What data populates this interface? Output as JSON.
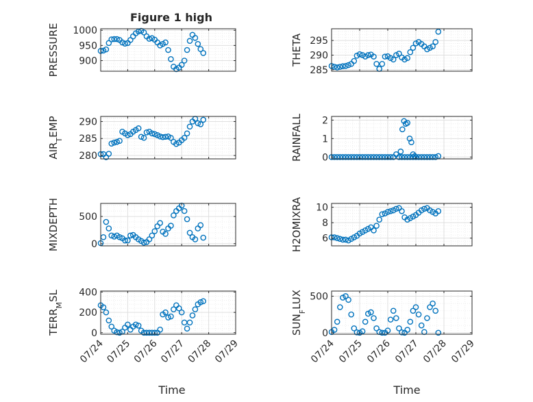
{
  "figure_title": "Figure 1 high",
  "xlabel": "Time",
  "x_ticks": [
    "07/24",
    "07/25",
    "07/26",
    "07/27",
    "07/28",
    "07/29"
  ],
  "colors": {
    "series": "#0072bd",
    "axis": "#262626",
    "grid": "#dfdfdf",
    "background": "#ffffff"
  },
  "chart_data": [
    {
      "type": "scatter",
      "ylabel": "PRESSURE",
      "ylim": [
        865,
        1005
      ],
      "yticks": [
        900,
        950,
        1000
      ],
      "grid": true,
      "t": [
        0,
        0.1,
        0.2,
        0.3,
        0.4,
        0.5,
        0.6,
        0.7,
        0.8,
        0.9,
        1.0,
        1.1,
        1.2,
        1.3,
        1.4,
        1.5,
        1.6,
        1.7,
        1.8,
        1.9,
        2.0,
        2.1,
        2.2,
        2.3,
        2.4,
        2.5,
        2.6,
        2.7,
        2.8,
        2.9,
        3.0,
        3.1,
        3.2,
        3.3,
        3.4,
        3.5,
        3.6,
        3.7,
        3.8
      ],
      "y": [
        932,
        933,
        937,
        958,
        970,
        971,
        971,
        968,
        960,
        956,
        958,
        968,
        980,
        990,
        996,
        998,
        993,
        980,
        972,
        974,
        969,
        960,
        950,
        955,
        960,
        935,
        905,
        880,
        872,
        877,
        886,
        900,
        935,
        965,
        985,
        975,
        955,
        938,
        925
      ]
    },
    {
      "type": "scatter",
      "ylabel": "THETA",
      "ylim": [
        284.5,
        299
      ],
      "yticks": [
        285,
        290,
        295
      ],
      "grid": true,
      "t": [
        0,
        0.1,
        0.2,
        0.3,
        0.4,
        0.5,
        0.6,
        0.7,
        0.8,
        0.9,
        1.0,
        1.1,
        1.2,
        1.3,
        1.4,
        1.5,
        1.6,
        1.7,
        1.8,
        1.9,
        2.0,
        2.1,
        2.2,
        2.3,
        2.4,
        2.5,
        2.6,
        2.7,
        2.8,
        2.9,
        3.0,
        3.1,
        3.2,
        3.3,
        3.4,
        3.5,
        3.6,
        3.7,
        3.8
      ],
      "y": [
        286.3,
        286.0,
        285.8,
        286.0,
        286.2,
        286.3,
        286.6,
        287.0,
        288.0,
        289.8,
        290.3,
        290.0,
        289.5,
        290.0,
        290.2,
        289.5,
        287.0,
        285.3,
        287.0,
        289.5,
        289.6,
        289.0,
        288.5,
        290.0,
        290.5,
        289.2,
        288.5,
        289.0,
        291.0,
        292.5,
        294.0,
        294.5,
        293.8,
        293.0,
        292.0,
        292.5,
        293.0,
        294.5,
        298.0
      ]
    },
    {
      "type": "scatter",
      "ylabel": "AIR_TEMP",
      "ylim": [
        279,
        291.5
      ],
      "yticks": [
        280,
        285,
        290
      ],
      "grid": true,
      "t": [
        0,
        0.1,
        0.2,
        0.3,
        0.4,
        0.5,
        0.6,
        0.7,
        0.8,
        0.9,
        1.0,
        1.1,
        1.2,
        1.3,
        1.4,
        1.5,
        1.6,
        1.7,
        1.8,
        1.9,
        2.0,
        2.1,
        2.2,
        2.3,
        2.4,
        2.5,
        2.6,
        2.7,
        2.8,
        2.9,
        3.0,
        3.1,
        3.2,
        3.3,
        3.4,
        3.5,
        3.6,
        3.7,
        3.8
      ],
      "y": [
        280.4,
        280.4,
        279.5,
        280.5,
        283.5,
        283.8,
        284.0,
        284.3,
        287.0,
        286.5,
        286.0,
        286.3,
        287.0,
        287.5,
        288.0,
        285.5,
        285.2,
        286.8,
        287.0,
        286.5,
        286.3,
        286.0,
        285.6,
        285.4,
        285.5,
        285.6,
        285.2,
        284.0,
        283.4,
        283.8,
        284.5,
        285.2,
        286.5,
        288.5,
        290.0,
        290.8,
        289.5,
        289.2,
        290.5
      ]
    },
    {
      "type": "scatter",
      "ylabel": "RAINFALL",
      "ylim": [
        -0.1,
        2.2
      ],
      "yticks": [
        0,
        1,
        2
      ],
      "grid": true,
      "t": [
        0,
        0.1,
        0.2,
        0.3,
        0.4,
        0.5,
        0.6,
        0.7,
        0.8,
        0.9,
        1.0,
        1.1,
        1.2,
        1.3,
        1.4,
        1.5,
        1.6,
        1.7,
        1.8,
        1.9,
        2.0,
        2.1,
        2.2,
        2.3,
        2.4,
        2.5,
        2.6,
        2.7,
        2.8,
        2.9,
        3.0,
        3.1,
        3.2,
        3.3,
        3.4,
        3.5,
        3.6,
        3.7,
        3.8,
        2.46,
        2.52,
        2.58,
        2.64,
        2.7,
        2.78,
        2.84,
        2.9,
        2.96
      ],
      "y": [
        0,
        0,
        0,
        0,
        0,
        0,
        0,
        0,
        0,
        0,
        0,
        0,
        0,
        0,
        0,
        0,
        0,
        0,
        0,
        0,
        0,
        0,
        0,
        0.15,
        0,
        0,
        0,
        0,
        0,
        0,
        0,
        0,
        0,
        0,
        0,
        0,
        0,
        0,
        0.05,
        0.3,
        1.5,
        1.95,
        1.8,
        1.85,
        1.0,
        0.8,
        0.15,
        0.05
      ]
    },
    {
      "type": "scatter",
      "ylabel": "MIXDEPTH",
      "ylim": [
        -40,
        740
      ],
      "yticks": [
        0,
        500
      ],
      "grid": true,
      "t": [
        0,
        0.1,
        0.2,
        0.3,
        0.4,
        0.5,
        0.6,
        0.7,
        0.8,
        0.9,
        1.0,
        1.1,
        1.2,
        1.3,
        1.4,
        1.5,
        1.6,
        1.7,
        1.8,
        1.9,
        2.0,
        2.1,
        2.2,
        2.3,
        2.4,
        2.5,
        2.6,
        2.7,
        2.8,
        2.9,
        3.0,
        3.1,
        3.2,
        3.3,
        3.4,
        3.5,
        3.6,
        3.7,
        3.8
      ],
      "y": [
        10,
        120,
        400,
        280,
        150,
        130,
        150,
        120,
        100,
        60,
        60,
        150,
        160,
        120,
        80,
        50,
        20,
        30,
        80,
        150,
        230,
        320,
        380,
        220,
        180,
        280,
        330,
        520,
        600,
        650,
        700,
        600,
        450,
        200,
        120,
        80,
        280,
        340,
        110
      ]
    },
    {
      "type": "scatter",
      "ylabel": "H2OMIXRA",
      "ylim": [
        5,
        10.5
      ],
      "yticks": [
        6,
        8,
        10
      ],
      "grid": true,
      "t": [
        0,
        0.1,
        0.2,
        0.3,
        0.4,
        0.5,
        0.6,
        0.7,
        0.8,
        0.9,
        1.0,
        1.1,
        1.2,
        1.3,
        1.4,
        1.5,
        1.6,
        1.7,
        1.8,
        1.9,
        2.0,
        2.1,
        2.2,
        2.3,
        2.4,
        2.5,
        2.6,
        2.7,
        2.8,
        2.9,
        3.0,
        3.1,
        3.2,
        3.3,
        3.4,
        3.5,
        3.6,
        3.7,
        3.8
      ],
      "y": [
        6.1,
        6.1,
        6.0,
        5.9,
        5.8,
        5.8,
        5.7,
        5.9,
        6.1,
        6.3,
        6.6,
        6.8,
        7.0,
        7.2,
        7.4,
        7.0,
        7.6,
        8.4,
        9.1,
        9.2,
        9.4,
        9.5,
        9.6,
        9.8,
        9.9,
        9.5,
        8.7,
        8.4,
        8.6,
        8.8,
        9.0,
        9.3,
        9.6,
        9.8,
        9.9,
        9.6,
        9.4,
        9.2,
        9.5
      ]
    },
    {
      "type": "scatter",
      "ylabel": "TERR_MSL",
      "ylim": [
        -15,
        410
      ],
      "yticks": [
        0,
        200,
        400
      ],
      "grid": true,
      "t": [
        0,
        0.1,
        0.2,
        0.3,
        0.4,
        0.5,
        0.6,
        0.7,
        0.8,
        0.9,
        1.0,
        1.1,
        1.2,
        1.3,
        1.4,
        1.5,
        1.6,
        1.7,
        1.8,
        1.9,
        2.0,
        2.1,
        2.2,
        2.3,
        2.4,
        2.5,
        2.6,
        2.7,
        2.8,
        2.9,
        3.0,
        3.1,
        3.2,
        3.3,
        3.4,
        3.5,
        3.6,
        3.7,
        3.8
      ],
      "y": [
        270,
        250,
        200,
        120,
        60,
        20,
        5,
        0,
        10,
        50,
        80,
        30,
        60,
        80,
        70,
        20,
        0,
        0,
        0,
        0,
        0,
        0,
        30,
        180,
        200,
        150,
        160,
        230,
        270,
        240,
        200,
        100,
        40,
        100,
        170,
        230,
        280,
        300,
        310
      ]
    },
    {
      "type": "scatter",
      "ylabel": "SUN_FLUX",
      "ylim": [
        -20,
        570
      ],
      "yticks": [
        0,
        500
      ],
      "grid": true,
      "t": [
        0,
        0.1,
        0.2,
        0.3,
        0.4,
        0.5,
        0.6,
        0.7,
        0.8,
        0.9,
        1.0,
        1.1,
        1.2,
        1.3,
        1.4,
        1.5,
        1.6,
        1.7,
        1.8,
        1.9,
        2.0,
        2.1,
        2.2,
        2.3,
        2.4,
        2.5,
        2.6,
        2.7,
        2.8,
        2.9,
        3.0,
        3.1,
        3.2,
        3.3,
        3.4,
        3.5,
        3.6,
        3.7,
        3.8
      ],
      "y": [
        10,
        40,
        150,
        350,
        480,
        500,
        450,
        250,
        60,
        5,
        0,
        20,
        150,
        260,
        280,
        200,
        60,
        10,
        0,
        0,
        30,
        180,
        300,
        200,
        60,
        5,
        0,
        40,
        150,
        300,
        350,
        250,
        100,
        10,
        200,
        350,
        400,
        300,
        0
      ]
    }
  ]
}
